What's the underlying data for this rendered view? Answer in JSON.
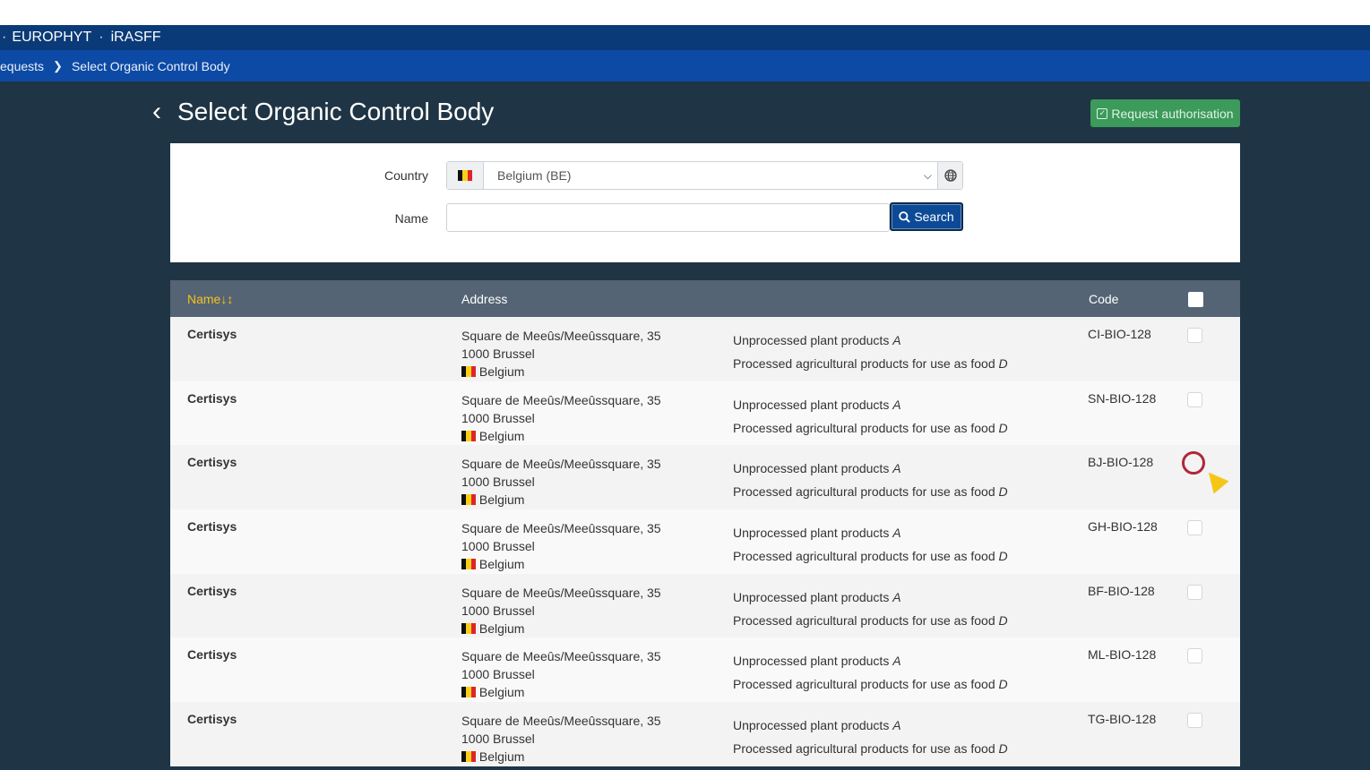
{
  "topbar": {
    "items": [
      "EUROPHYT",
      "iRASFF"
    ]
  },
  "breadcrumb": {
    "items": [
      "equests",
      "Select Organic Control Body"
    ]
  },
  "page": {
    "title": "Select Organic Control Body"
  },
  "actions": {
    "request_label": "Request authorisation"
  },
  "filter": {
    "country_label": "Country",
    "country_value": "Belgium (BE)",
    "name_label": "Name",
    "name_value": "",
    "search_label": "Search"
  },
  "table": {
    "headers": {
      "name": "Name",
      "address": "Address",
      "code": "Code"
    },
    "rows": [
      {
        "name": "Certisys",
        "street": "Square de Meeûs/Meeûssquare, 35",
        "city": "1000 Brussel",
        "country": "Belgium",
        "prod1": "Unprocessed plant products",
        "cat1": "A",
        "prod2": "Processed agricultural products for use as food",
        "cat2": "D",
        "code": "CI-BIO-128"
      },
      {
        "name": "Certisys",
        "street": "Square de Meeûs/Meeûssquare, 35",
        "city": "1000 Brussel",
        "country": "Belgium",
        "prod1": "Unprocessed plant products",
        "cat1": "A",
        "prod2": "Processed agricultural products for use as food",
        "cat2": "D",
        "code": "SN-BIO-128"
      },
      {
        "name": "Certisys",
        "street": "Square de Meeûs/Meeûssquare, 35",
        "city": "1000 Brussel",
        "country": "Belgium",
        "prod1": "Unprocessed plant products",
        "cat1": "A",
        "prod2": "Processed agricultural products for use as food",
        "cat2": "D",
        "code": "BJ-BIO-128"
      },
      {
        "name": "Certisys",
        "street": "Square de Meeûs/Meeûssquare, 35",
        "city": "1000 Brussel",
        "country": "Belgium",
        "prod1": "Unprocessed plant products",
        "cat1": "A",
        "prod2": "Processed agricultural products for use as food",
        "cat2": "D",
        "code": "GH-BIO-128"
      },
      {
        "name": "Certisys",
        "street": "Square de Meeûs/Meeûssquare, 35",
        "city": "1000 Brussel",
        "country": "Belgium",
        "prod1": "Unprocessed plant products",
        "cat1": "A",
        "prod2": "Processed agricultural products for use as food",
        "cat2": "D",
        "code": "BF-BIO-128"
      },
      {
        "name": "Certisys",
        "street": "Square de Meeûs/Meeûssquare, 35",
        "city": "1000 Brussel",
        "country": "Belgium",
        "prod1": "Unprocessed plant products",
        "cat1": "A",
        "prod2": "Processed agricultural products for use as food",
        "cat2": "D",
        "code": "ML-BIO-128"
      },
      {
        "name": "Certisys",
        "street": "Square de Meeûs/Meeûssquare, 35",
        "city": "1000 Brussel",
        "country": "Belgium",
        "prod1": "Unprocessed plant products",
        "cat1": "A",
        "prod2": "Processed agricultural products for use as food",
        "cat2": "D",
        "code": "TG-BIO-128"
      }
    ]
  },
  "colors": {
    "topbar": "#0b3a78",
    "breadcrumb": "#0d4aa5",
    "background": "#1f3545",
    "accent_green": "#3c9a5a",
    "sort_header": "#f6c21c"
  },
  "icons": [
    "back-chevron-icon",
    "belgium-flag-icon",
    "globe-icon",
    "search-icon",
    "check-square-icon",
    "sort-icon"
  ]
}
